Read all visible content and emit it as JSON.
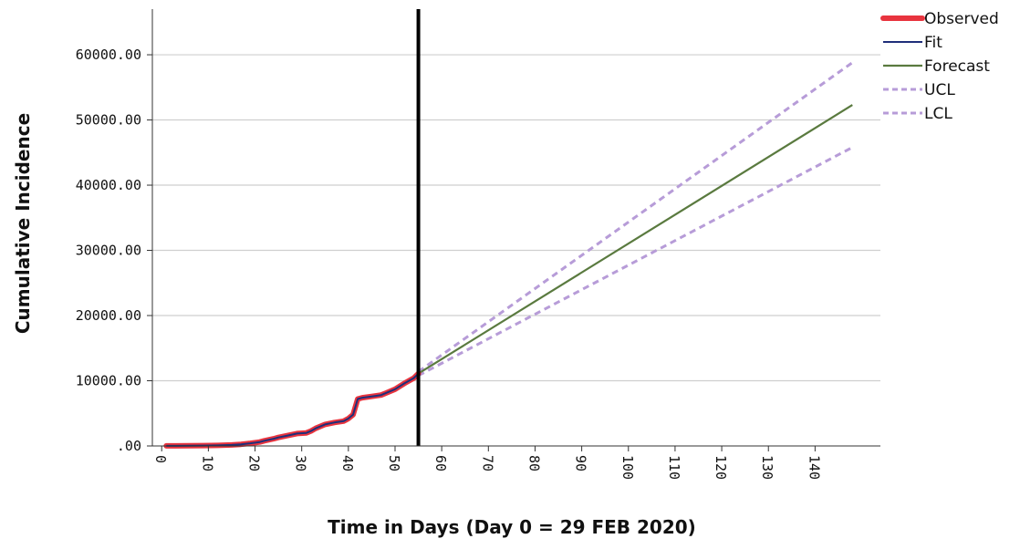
{
  "chart_data": {
    "type": "line",
    "xlabel": "Time in Days (Day 0 = 29 FEB 2020)",
    "ylabel": "Cumulative Incidence",
    "xlim": [
      -2,
      154
    ],
    "ylim": [
      0,
      67000
    ],
    "x_ticks": [
      0,
      10,
      20,
      30,
      40,
      50,
      60,
      70,
      80,
      90,
      100,
      110,
      120,
      130,
      140
    ],
    "x_tick_labels": [
      "0",
      "10",
      "20",
      "30",
      "40",
      "50",
      "60",
      "70",
      "80",
      "90",
      "100",
      "110",
      "120",
      "130",
      "140"
    ],
    "y_ticks": [
      0,
      10000,
      20000,
      30000,
      40000,
      50000,
      60000
    ],
    "y_tick_labels": [
      ".00",
      "10000.00",
      "20000.00",
      "30000.00",
      "40000.00",
      "50000.00",
      "60000.00"
    ],
    "grid": "horizontal",
    "legend_position": "top-right",
    "forecast_origin_x": 55,
    "colors": {
      "observed": "#e8343e",
      "fit": "#1f2f7a",
      "forecast": "#5a7a3f",
      "ucl": "#b79cd8",
      "lcl": "#b79cd8",
      "divider": "#000000",
      "grid": "#cfcfcf"
    },
    "series": [
      {
        "name": "Observed",
        "x": [
          1,
          3,
          6,
          9,
          12,
          15,
          17,
          19,
          21,
          22,
          24,
          25,
          27,
          29,
          31,
          32,
          33,
          35,
          37,
          39,
          40,
          41,
          42,
          43,
          45,
          47,
          48,
          50,
          52,
          54,
          55
        ],
        "values": [
          10,
          20,
          40,
          60,
          80,
          150,
          250,
          400,
          600,
          800,
          1100,
          1300,
          1600,
          1900,
          2000,
          2300,
          2700,
          3300,
          3600,
          3800,
          4200,
          4800,
          7200,
          7400,
          7600,
          7800,
          8100,
          8700,
          9600,
          10400,
          11100
        ]
      },
      {
        "name": "Fit",
        "x": [
          1,
          3,
          6,
          9,
          12,
          15,
          17,
          19,
          21,
          22,
          24,
          25,
          27,
          29,
          31,
          32,
          33,
          35,
          37,
          39,
          40,
          41,
          42,
          43,
          45,
          47,
          48,
          50,
          52,
          54,
          55
        ],
        "values": [
          10,
          20,
          40,
          60,
          80,
          150,
          250,
          400,
          600,
          800,
          1100,
          1300,
          1600,
          1900,
          2000,
          2300,
          2700,
          3300,
          3600,
          3800,
          4200,
          4800,
          7200,
          7400,
          7600,
          7800,
          8100,
          8700,
          9600,
          10400,
          11100
        ]
      },
      {
        "name": "Forecast",
        "x": [
          55,
          148
        ],
        "values": [
          11100,
          52300
        ]
      },
      {
        "name": "UCL",
        "x": [
          55,
          148
        ],
        "values": [
          11400,
          58800
        ]
      },
      {
        "name": "LCL",
        "x": [
          55,
          148
        ],
        "values": [
          10800,
          45800
        ]
      }
    ],
    "legend": [
      "Observed",
      "Fit",
      "Forecast",
      "UCL",
      "LCL"
    ]
  }
}
